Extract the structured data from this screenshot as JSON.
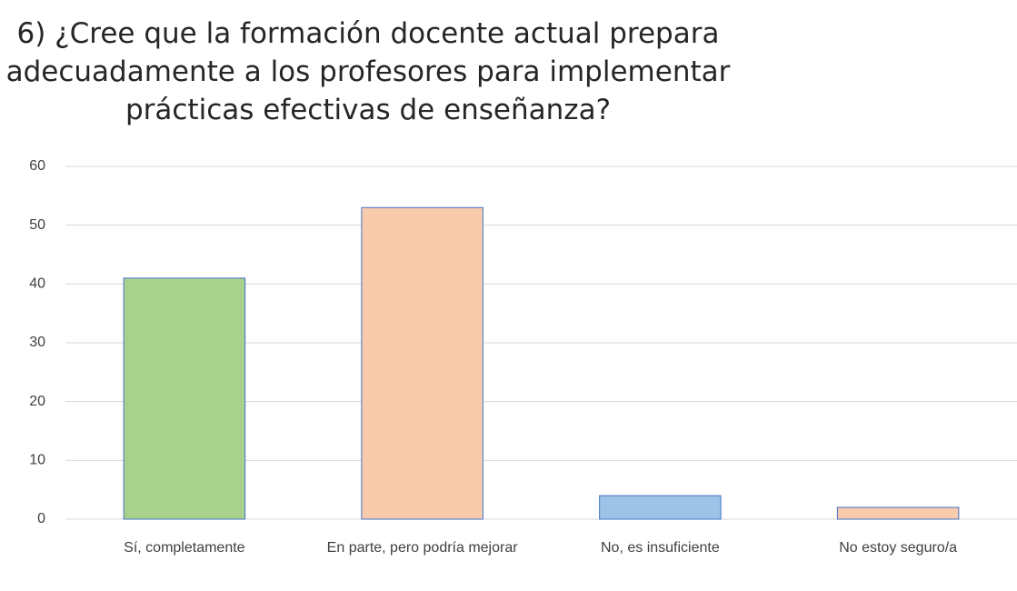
{
  "chart_data": {
    "type": "bar",
    "title": "6) ¿Cree que la formación docente actual prepara adecuadamente a los profesores para implementar prácticas efectivas de enseñanza?",
    "categories": [
      "Sí, completamente",
      "En parte, pero podría mejorar",
      "No, es insuficiente",
      "No estoy seguro/a"
    ],
    "values": [
      41,
      53,
      4,
      2
    ],
    "colors": [
      "#a9d18e",
      "#f8cbad",
      "#9dc3e6",
      "#f8cbad"
    ],
    "border_color": "#4472c4",
    "ylim": [
      0,
      60
    ],
    "yticks": [
      0,
      10,
      20,
      30,
      40,
      50,
      60
    ],
    "grid": true
  }
}
